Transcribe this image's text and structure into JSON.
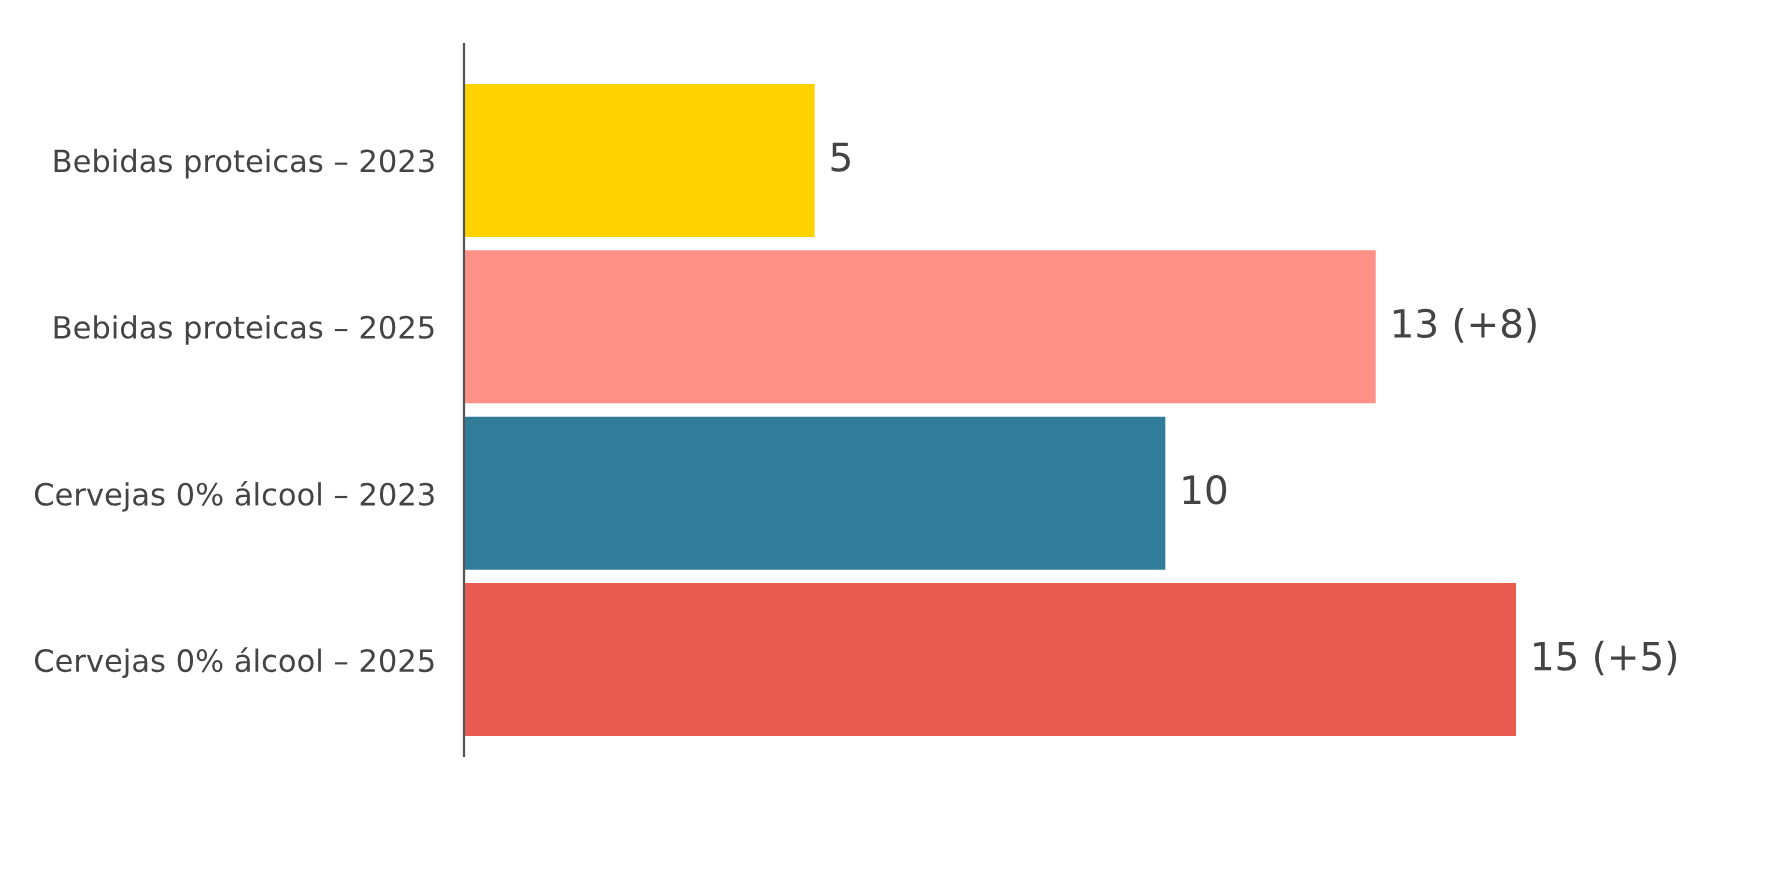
{
  "chart_data": {
    "type": "bar",
    "orientation": "horizontal",
    "categories": [
      "Bebidas proteicas – 2023",
      "Bebidas proteicas – 2025",
      "Cervejas 0% álcool – 2023",
      "Cervejas 0% álcool – 2025"
    ],
    "values": [
      5,
      13,
      10,
      15
    ],
    "colors": [
      "#ffd200",
      "#ff9189",
      "#317d99",
      "#e95a50"
    ],
    "value_labels": [
      "5",
      "13 (+8)",
      "10",
      "15 (+5)"
    ],
    "grid": false,
    "legend": false
  }
}
